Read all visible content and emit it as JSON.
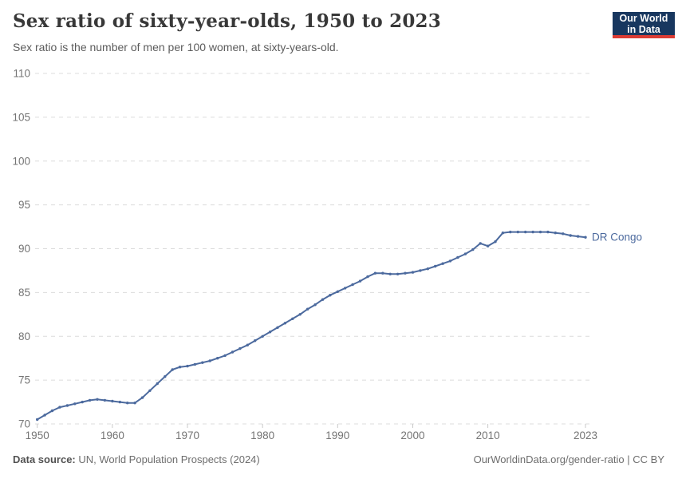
{
  "header": {
    "title": "Sex ratio of sixty-year-olds, 1950 to 2023",
    "subtitle": "Sex ratio is the number of men per 100 women, at sixty-years-old.",
    "logo": {
      "line1": "Our World",
      "line2": "in Data"
    }
  },
  "footer": {
    "source_label": "Data source:",
    "source_value": " UN, World Population Prospects (2024)",
    "link_text": "OurWorldinData.org/gender-ratio | CC BY"
  },
  "colors": {
    "line": "#4c6a9e",
    "logo_navy": "#18375f",
    "logo_red": "#dc3c34",
    "gridline": "#dcdcdc",
    "tick_text": "#747474"
  },
  "chart_data": {
    "type": "line",
    "title": "Sex ratio of sixty-year-olds, 1950 to 2023",
    "subtitle": "Sex ratio is the number of men per 100 women, at sixty-years-old.",
    "xlabel": "",
    "ylabel": "",
    "xlim": [
      1950,
      2023
    ],
    "ylim": [
      70,
      110
    ],
    "xticks": [
      1950,
      1960,
      1970,
      1980,
      1990,
      2000,
      2010,
      2023
    ],
    "yticks": [
      70,
      75,
      80,
      85,
      90,
      95,
      100,
      105,
      110
    ],
    "grid": "horizontal-dashed",
    "legend": "end-of-line-label",
    "marker": "dot-every-year",
    "series": [
      {
        "name": "DR Congo",
        "years": [
          1950,
          1951,
          1952,
          1953,
          1954,
          1955,
          1956,
          1957,
          1958,
          1959,
          1960,
          1961,
          1962,
          1963,
          1964,
          1965,
          1966,
          1967,
          1968,
          1969,
          1970,
          1971,
          1972,
          1973,
          1974,
          1975,
          1976,
          1977,
          1978,
          1979,
          1980,
          1981,
          1982,
          1983,
          1984,
          1985,
          1986,
          1987,
          1988,
          1989,
          1990,
          1991,
          1992,
          1993,
          1994,
          1995,
          1996,
          1997,
          1998,
          1999,
          2000,
          2001,
          2002,
          2003,
          2004,
          2005,
          2006,
          2007,
          2008,
          2009,
          2010,
          2011,
          2012,
          2013,
          2014,
          2015,
          2016,
          2017,
          2018,
          2019,
          2020,
          2021,
          2022,
          2023
        ],
        "values": [
          70.5,
          71.0,
          71.5,
          71.9,
          72.1,
          72.3,
          72.5,
          72.7,
          72.8,
          72.7,
          72.6,
          72.5,
          72.4,
          72.4,
          73.0,
          73.8,
          74.6,
          75.4,
          76.2,
          76.5,
          76.6,
          76.8,
          77.0,
          77.2,
          77.5,
          77.8,
          78.2,
          78.6,
          79.0,
          79.5,
          80.0,
          80.5,
          81.0,
          81.5,
          82.0,
          82.5,
          83.1,
          83.6,
          84.2,
          84.7,
          85.1,
          85.5,
          85.9,
          86.3,
          86.8,
          87.2,
          87.2,
          87.1,
          87.1,
          87.2,
          87.3,
          87.5,
          87.7,
          88.0,
          88.3,
          88.6,
          89.0,
          89.4,
          89.9,
          90.6,
          90.3,
          90.8,
          91.8,
          91.9,
          91.9,
          91.9,
          91.9,
          91.9,
          91.9,
          91.8,
          91.7,
          91.5,
          91.4,
          91.3
        ]
      }
    ]
  }
}
